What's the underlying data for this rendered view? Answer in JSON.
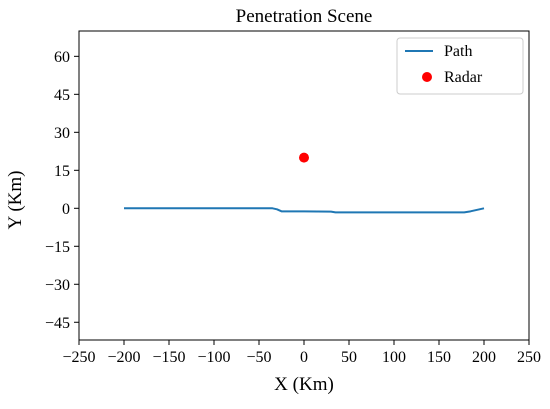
{
  "chart_data": {
    "type": "line",
    "title": "Penetration Scene",
    "xlabel": "X (Km)",
    "ylabel": "Y (Km)",
    "xlim": [
      -250,
      250
    ],
    "ylim": [
      -52,
      70
    ],
    "xticks": [
      -250,
      -200,
      -150,
      -100,
      -50,
      0,
      50,
      100,
      150,
      200,
      250
    ],
    "yticks": [
      -45,
      -30,
      -15,
      0,
      15,
      30,
      45,
      60
    ],
    "grid": false,
    "legend_position": "top-right",
    "series": [
      {
        "name": "Path",
        "kind": "line",
        "color": "#1f77b4",
        "x": [
          -200,
          -150,
          -100,
          -50,
          -35,
          -30,
          -25,
          0,
          30,
          35,
          100,
          150,
          178,
          185,
          190,
          195,
          200
        ],
        "y": [
          0,
          0,
          0,
          0,
          0,
          -0.4,
          -1.2,
          -1.2,
          -1.3,
          -1.6,
          -1.6,
          -1.6,
          -1.6,
          -1.2,
          -0.8,
          -0.4,
          0
        ]
      },
      {
        "name": "Radar",
        "kind": "scatter",
        "color": "#ff0000",
        "x": [
          0
        ],
        "y": [
          20
        ]
      }
    ]
  }
}
